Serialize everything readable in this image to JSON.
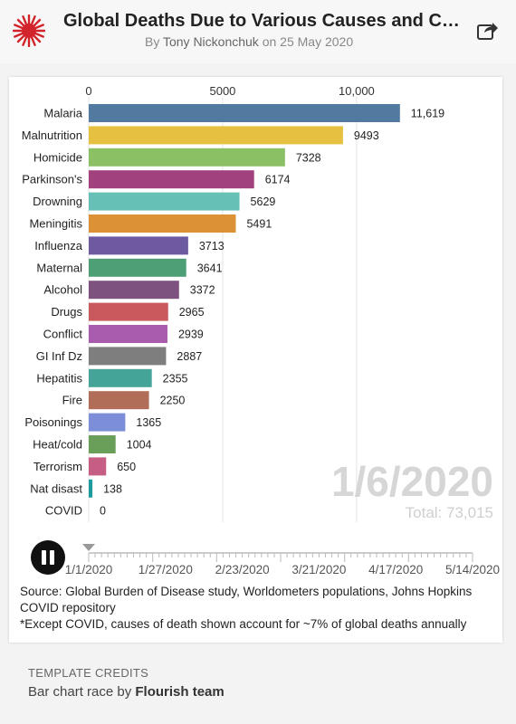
{
  "header": {
    "title": "Global Deaths Due to Various Causes and CO...",
    "byline_prefix": "By",
    "author": "Tony Nickonchuk",
    "byline_date": "on 25 May 2020",
    "logo_color": "#d2232a"
  },
  "chart_data": {
    "type": "bar",
    "orientation": "horizontal",
    "categories": [
      "Malaria",
      "Malnutrition",
      "Homicide",
      "Parkinson's",
      "Drowning",
      "Meningitis",
      "Influenza",
      "Maternal",
      "Alcohol",
      "Drugs",
      "Conflict",
      "GI Inf Dz",
      "Hepatitis",
      "Fire",
      "Poisonings",
      "Heat/cold",
      "Terrorism",
      "Nat disast",
      "COVID"
    ],
    "values": [
      11619,
      9493,
      7328,
      6174,
      5629,
      5491,
      3713,
      3641,
      3372,
      2965,
      2939,
      2887,
      2355,
      2250,
      1365,
      1004,
      650,
      138,
      0
    ],
    "value_labels": [
      "11,619",
      "9493",
      "7328",
      "6174",
      "5629",
      "5491",
      "3713",
      "3641",
      "3372",
      "2965",
      "2939",
      "2887",
      "2355",
      "2250",
      "1365",
      "1004",
      "650",
      "138",
      "0"
    ],
    "colors": [
      "#52799f",
      "#e6c141",
      "#8cc064",
      "#a1417d",
      "#67c0b5",
      "#dc9234",
      "#6d5aa0",
      "#4e9e76",
      "#7d527e",
      "#c9595c",
      "#a95cae",
      "#7e7e7e",
      "#43a497",
      "#b16d58",
      "#7c8ed8",
      "#6a9f5a",
      "#c55d84",
      "#1d9c9d",
      "#c9c9c9"
    ],
    "xticks": [
      0,
      5000,
      10000
    ],
    "xtick_labels": [
      "0",
      "5000",
      "10,000"
    ],
    "xlim": [
      0,
      12500
    ],
    "grid": true,
    "current_date": "1/6/2020",
    "total_label": "Total: 73,015"
  },
  "timeline": {
    "labels": [
      "1/1/2020",
      "1/27/2020",
      "2/23/2020",
      "3/21/2020",
      "4/17/2020",
      "5/14/2020"
    ],
    "position": 0.0
  },
  "footer": {
    "source": "Source: Global Burden of Disease study, Worldometers populations, Johns Hopkins COVID repository",
    "note": "*Except COVID, causes of death shown account for ~7% of global deaths annually"
  },
  "credits": {
    "label": "TEMPLATE CREDITS",
    "prefix": "Bar chart race by",
    "team": "Flourish team"
  }
}
